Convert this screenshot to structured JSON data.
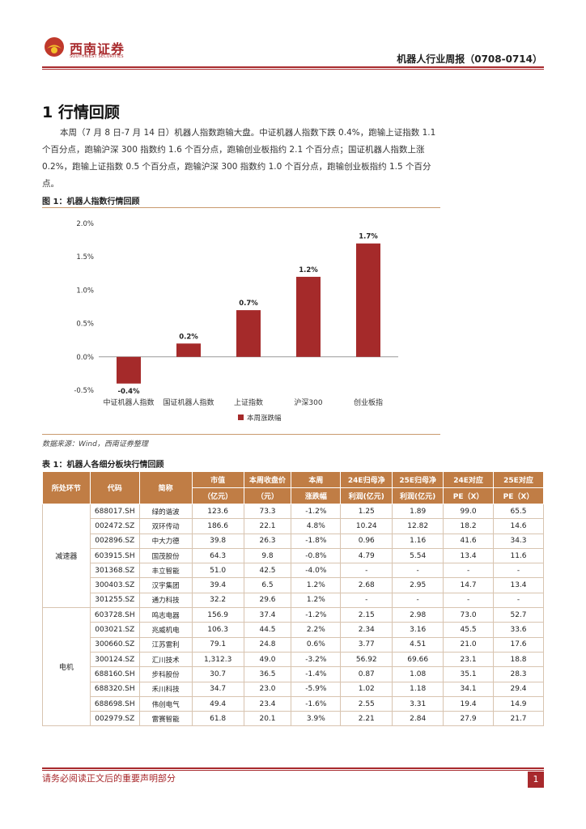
{
  "header": {
    "logo_cn": "西南证券",
    "logo_en": "SOUTHWEST SECURITIES",
    "report_title": "机器人行业周报（0708-0714）"
  },
  "section": {
    "title": "1 行情回顾",
    "intro": "本周（7 月 8 日-7 月 14 日）机器人指数跑输大盘。中证机器人指数下跌 0.4%，跑输上证指数 1.1 个百分点，跑输沪深 300 指数约 1.6 个百分点，跑输创业板指约 2.1 个百分点；国证机器人指数上涨 0.2%，跑输上证指数 0.5 个百分点，跑输沪深 300 指数约 1.0 个百分点，跑输创业板指约 1.5 个百分点。"
  },
  "figure": {
    "caption": "图 1：机器人指数行情回顾",
    "source": "数据来源：Wind，西南证券整理"
  },
  "chart_data": {
    "type": "bar",
    "categories": [
      "中证机器人指数",
      "国证机器人指数",
      "上证指数",
      "沪深300",
      "创业板指"
    ],
    "series": [
      {
        "name": "本周涨跌幅",
        "values": [
          -0.4,
          0.2,
          0.7,
          1.2,
          1.7
        ]
      }
    ],
    "data_labels": [
      "-0.4%",
      "0.2%",
      "0.7%",
      "1.2%",
      "1.7%"
    ],
    "y_ticks": [
      "2.0%",
      "1.5%",
      "1.0%",
      "0.5%",
      "0.0%",
      "-0.5%"
    ],
    "ylim": [
      -0.5,
      2.0
    ],
    "grid": false,
    "legend_position": "bottom",
    "bar_color": "#a52a2a"
  },
  "table": {
    "caption": "表 1：机器人各细分板块行情回顾",
    "headers": {
      "sector": "所处环节",
      "code": "代码",
      "name": "简称",
      "mcap_1": "市值",
      "mcap_2": "（亿元）",
      "price_1": "本周收盘价",
      "price_2": "（元）",
      "chg_1": "本周",
      "chg_2": "涨跌幅",
      "np24_1": "24E归母净",
      "np24_2": "利润(亿元)",
      "np25_1": "25E归母净",
      "np25_2": "利润(亿元)",
      "pe24_1": "24E对应",
      "pe24_2": "PE（X）",
      "pe25_1": "25E对应",
      "pe25_2": "PE（X）"
    },
    "groups": [
      {
        "sector": "减速器",
        "rows": [
          [
            "688017.SH",
            "绿的谐波",
            "123.6",
            "73.3",
            "-1.2%",
            "1.25",
            "1.89",
            "99.0",
            "65.5"
          ],
          [
            "002472.SZ",
            "双环传动",
            "186.6",
            "22.1",
            "4.8%",
            "10.24",
            "12.82",
            "18.2",
            "14.6"
          ],
          [
            "002896.SZ",
            "中大力德",
            "39.8",
            "26.3",
            "-1.8%",
            "0.96",
            "1.16",
            "41.6",
            "34.3"
          ],
          [
            "603915.SH",
            "国茂股份",
            "64.3",
            "9.8",
            "-0.8%",
            "4.79",
            "5.54",
            "13.4",
            "11.6"
          ],
          [
            "301368.SZ",
            "丰立智能",
            "51.0",
            "42.5",
            "-4.0%",
            "-",
            "-",
            "-",
            "-"
          ],
          [
            "300403.SZ",
            "汉宇集团",
            "39.4",
            "6.5",
            "1.2%",
            "2.68",
            "2.95",
            "14.7",
            "13.4"
          ],
          [
            "301255.SZ",
            "通力科技",
            "32.2",
            "29.6",
            "1.2%",
            "-",
            "-",
            "-",
            "-"
          ]
        ]
      },
      {
        "sector": "电机",
        "rows": [
          [
            "603728.SH",
            "鸣志电器",
            "156.9",
            "37.4",
            "-1.2%",
            "2.15",
            "2.98",
            "73.0",
            "52.7"
          ],
          [
            "003021.SZ",
            "兆威机电",
            "106.3",
            "44.5",
            "2.2%",
            "2.34",
            "3.16",
            "45.5",
            "33.6"
          ],
          [
            "300660.SZ",
            "江苏雷利",
            "79.1",
            "24.8",
            "0.6%",
            "3.77",
            "4.51",
            "21.0",
            "17.6"
          ],
          [
            "300124.SZ",
            "汇川技术",
            "1,312.3",
            "49.0",
            "-3.2%",
            "56.92",
            "69.66",
            "23.1",
            "18.8"
          ],
          [
            "688160.SH",
            "步科股份",
            "30.7",
            "36.5",
            "-1.4%",
            "0.87",
            "1.08",
            "35.1",
            "28.3"
          ],
          [
            "688320.SH",
            "禾川科技",
            "34.7",
            "23.0",
            "-5.9%",
            "1.02",
            "1.18",
            "34.1",
            "29.4"
          ],
          [
            "688698.SH",
            "伟创电气",
            "49.4",
            "23.4",
            "-1.6%",
            "2.55",
            "3.31",
            "19.4",
            "14.9"
          ],
          [
            "002979.SZ",
            "雷赛智能",
            "61.8",
            "20.1",
            "3.9%",
            "2.21",
            "2.84",
            "27.9",
            "21.7"
          ]
        ]
      }
    ]
  },
  "footer": {
    "disclaimer": "请务必阅读正文后的重要声明部分",
    "page_number": "1"
  }
}
